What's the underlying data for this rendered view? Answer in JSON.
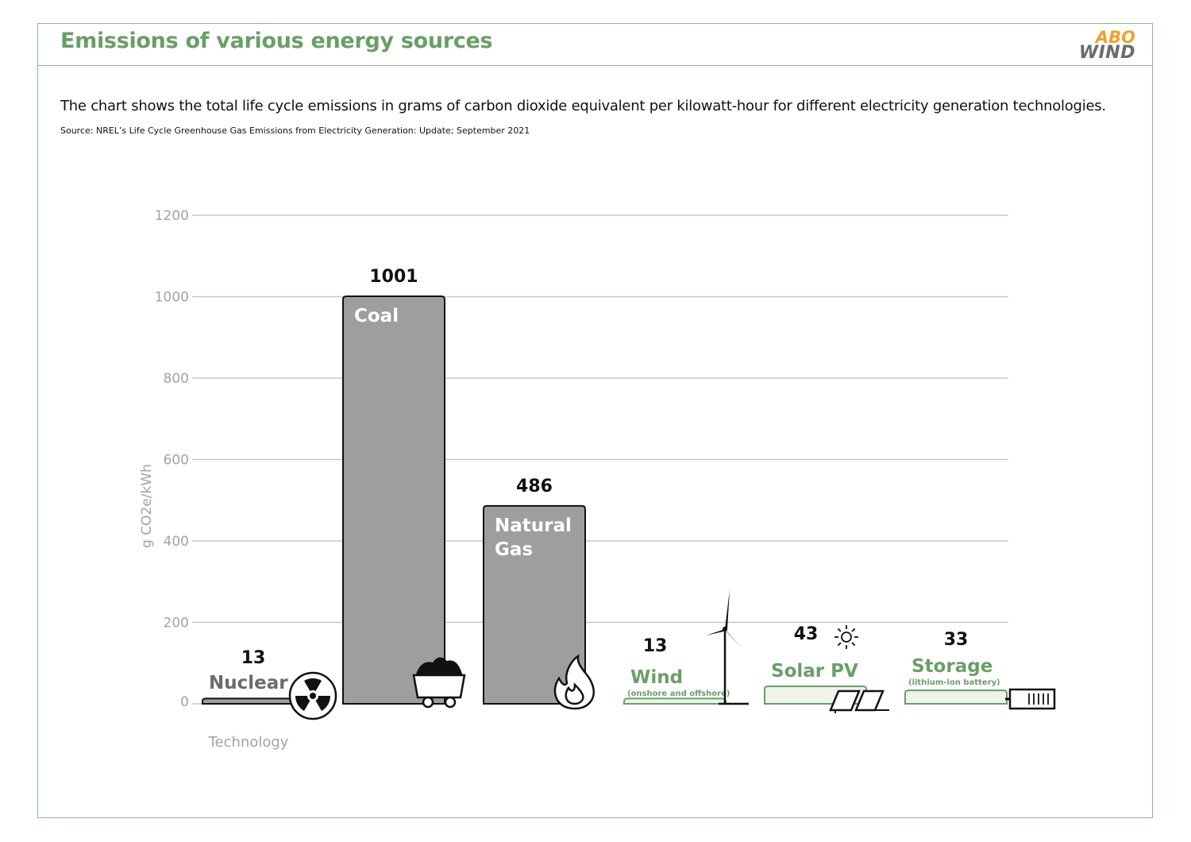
{
  "header": {
    "title": "Emissions of various energy sources",
    "logo_top": "ABO",
    "logo_bottom": "WIND"
  },
  "description": "The chart shows the total life cycle emissions in grams of carbon dioxide equivalent per kilowatt-hour for different electricity generation technologies.",
  "source": "Source: NREL’s Life Cycle Greenhouse Gas Emissions from Electricity Generation: Update; September 2021",
  "colors": {
    "frame": "#8cb88a",
    "title": "#6a9e68",
    "fossil_bar": "#9d9e9f",
    "renewable_bar": "#eef3ec",
    "renewable_label": "#6a9e68",
    "fossil_label": "#6b6b6b",
    "grid": "#c8c8c8",
    "axis_text": "#a3a3a3",
    "logo_orange": "#f0a030",
    "logo_gray": "#6b6b6b"
  },
  "chart_data": {
    "type": "bar",
    "ylabel": "g CO2e/kWh",
    "xlabel": "Technology",
    "ylim": [
      0,
      1200
    ],
    "yticks": [
      0,
      200,
      400,
      600,
      800,
      1000,
      1200
    ],
    "grid": true,
    "categories": [
      {
        "label": [
          "Nuclear"
        ],
        "sublabel": "",
        "value": 13,
        "value_label": "13",
        "kind": "fossil",
        "icon": "radiation-icon"
      },
      {
        "label": [
          "Coal"
        ],
        "sublabel": "",
        "value": 1001,
        "value_label": "1001",
        "kind": "fossil",
        "icon": "coal-cart-icon"
      },
      {
        "label": [
          "Natural",
          "Gas"
        ],
        "sublabel": "",
        "value": 486,
        "value_label": "486",
        "kind": "fossil",
        "icon": "flame-icon"
      },
      {
        "label": [
          "Wind"
        ],
        "sublabel": "(onshore and offshore)",
        "value": 13,
        "value_label": "13",
        "kind": "renewable",
        "icon": "wind-turbine-icon"
      },
      {
        "label": [
          "Solar PV"
        ],
        "sublabel": "",
        "value": 43,
        "value_label": "43",
        "kind": "renewable",
        "icon": "solar-panel-icon"
      },
      {
        "label": [
          "Storage"
        ],
        "sublabel": "(lithium-ion battery)",
        "value": 33,
        "value_label": "33",
        "kind": "renewable",
        "icon": "battery-icon"
      }
    ]
  }
}
